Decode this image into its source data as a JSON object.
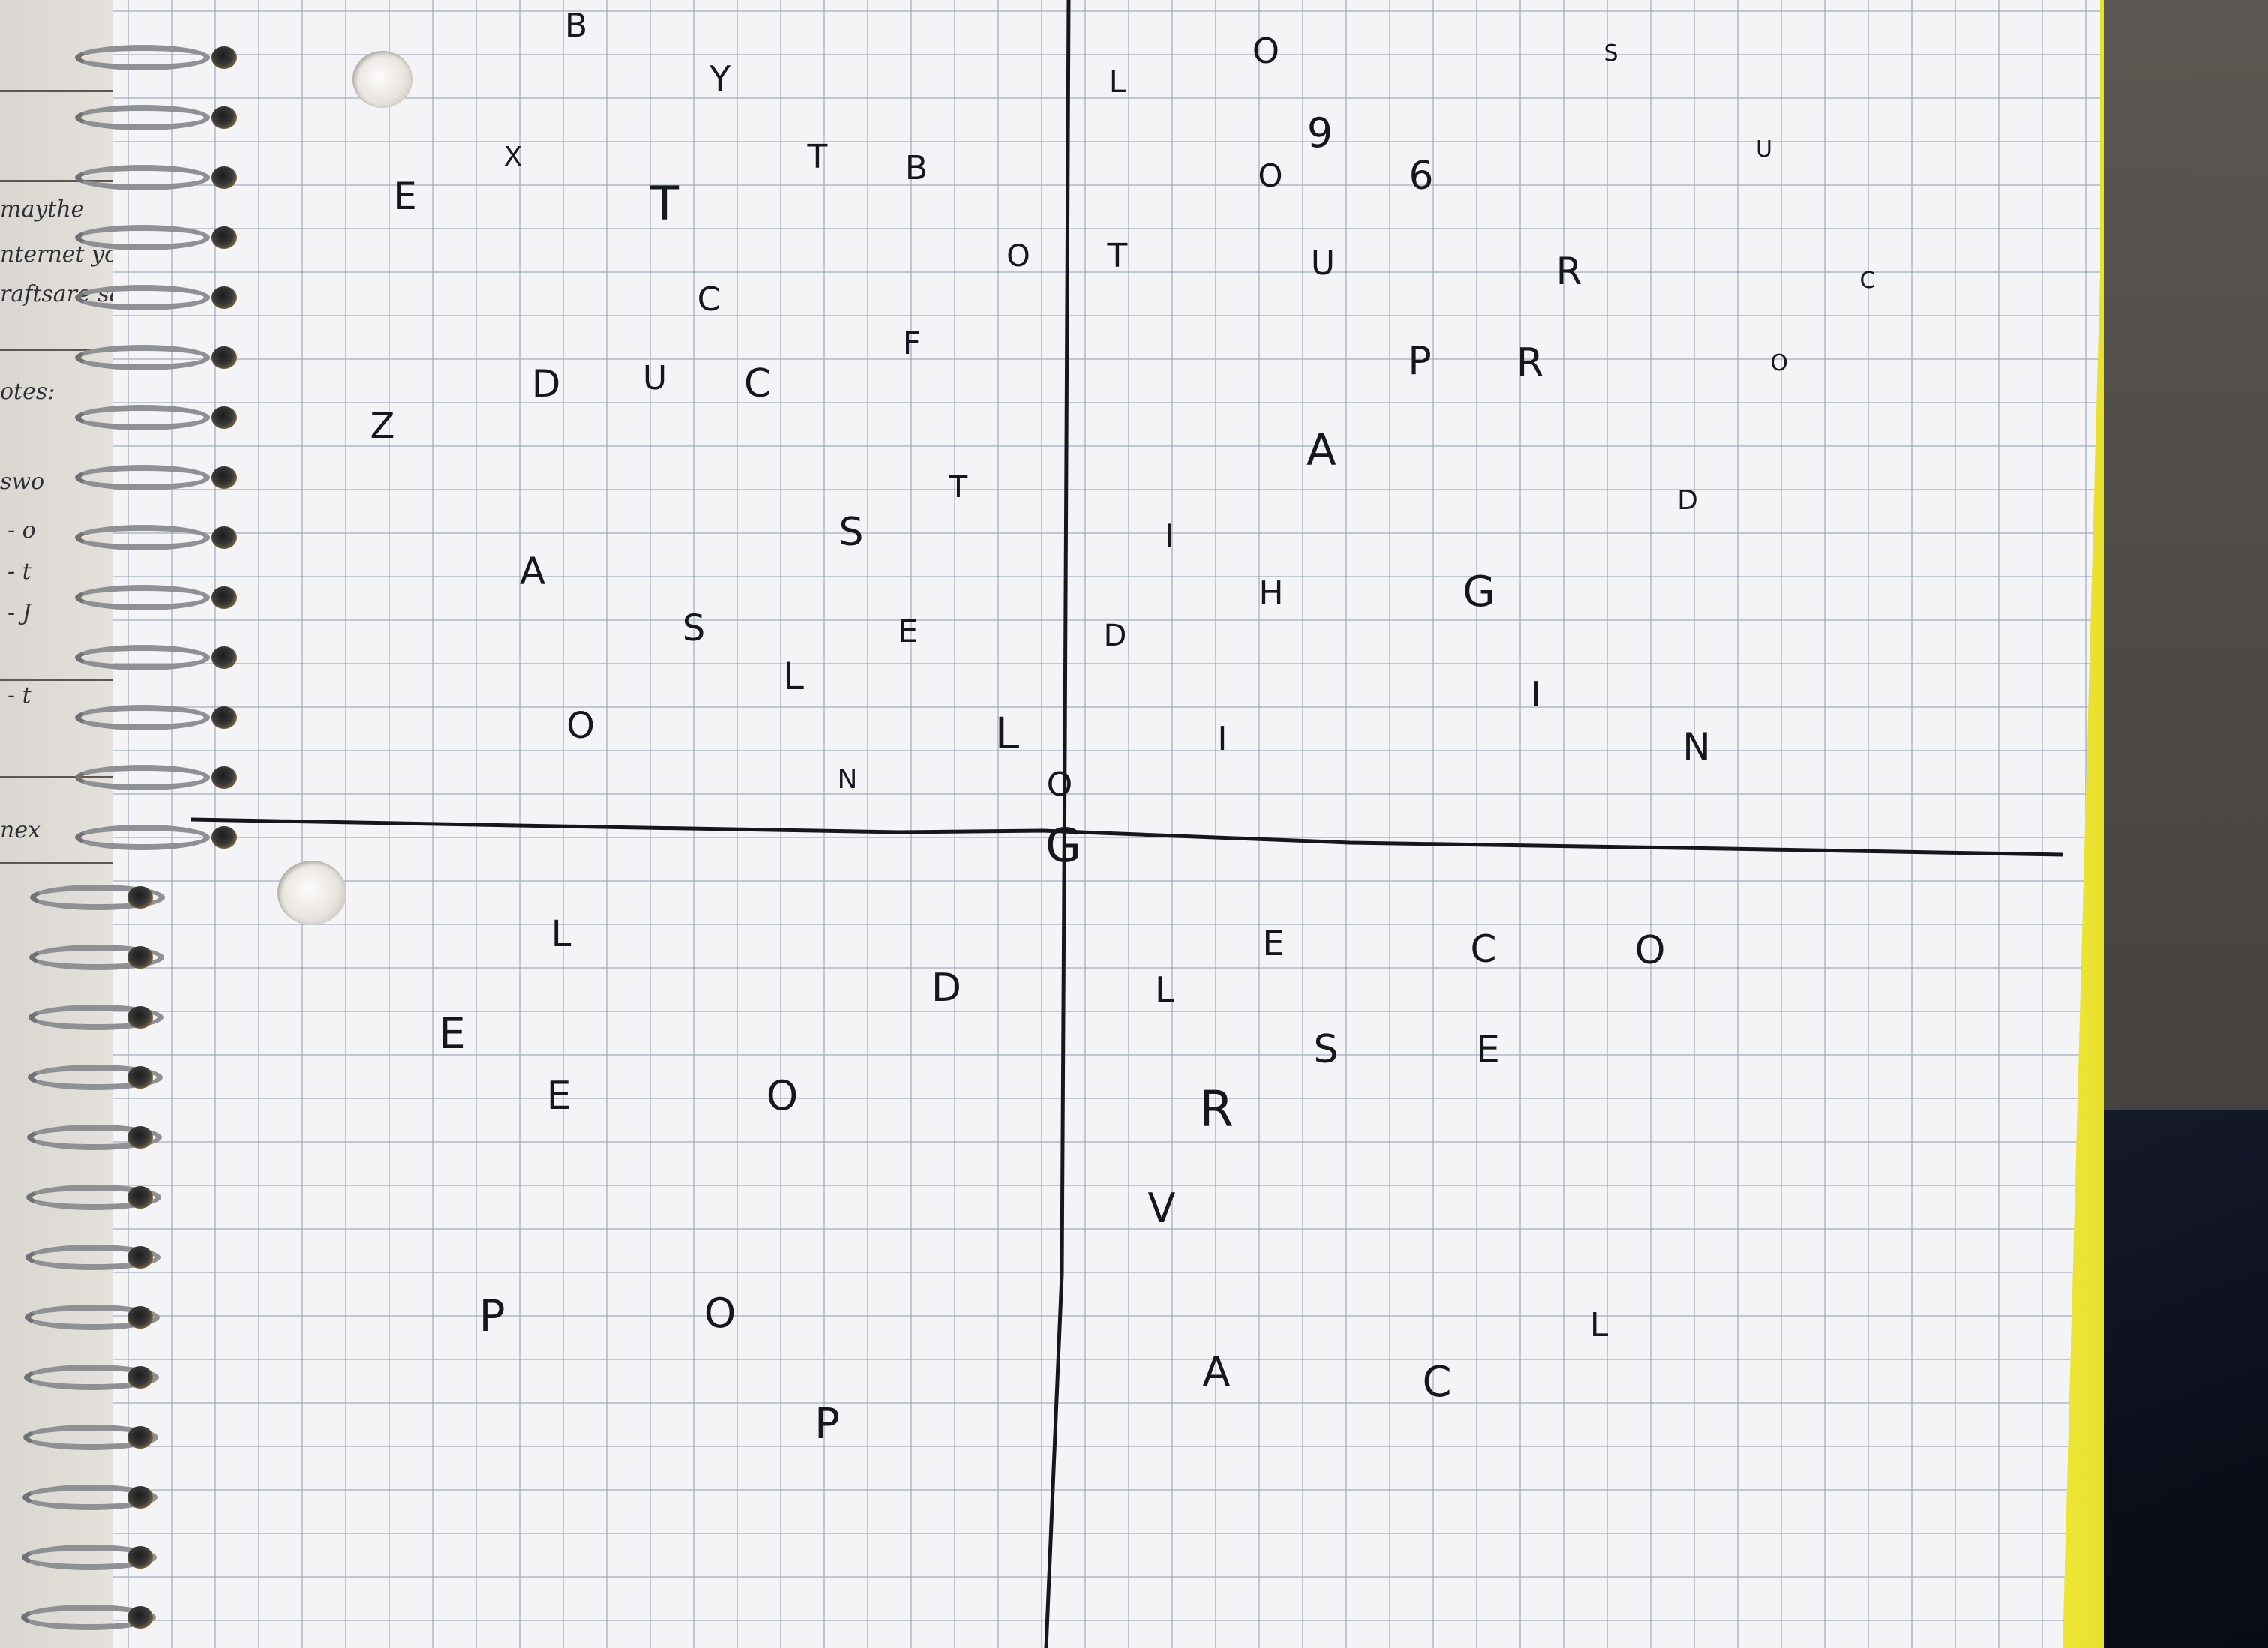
{
  "scene": {
    "description_kind": "photo",
    "colors": {
      "paper": "#f4f4f6",
      "grid": "#96a2b6",
      "ink": "#16171c",
      "notebook_edge": "#f2ec3a",
      "desk": "#4a4744",
      "fabric": "#0c0f1b"
    }
  },
  "notebook_left": {
    "scrawls": [
      "maythe",
      "nternet yo",
      "raftsare sa",
      "otes:",
      "swo",
      "- o",
      "- t",
      "- J",
      "- t",
      "nex"
    ]
  },
  "letters": [
    {
      "t": "B"
    },
    {
      "t": "Y"
    },
    {
      "t": "L"
    },
    {
      "t": "O"
    },
    {
      "t": "S"
    },
    {
      "t": "9"
    },
    {
      "t": "X"
    },
    {
      "t": "T"
    },
    {
      "t": "B"
    },
    {
      "t": "O"
    },
    {
      "t": "6"
    },
    {
      "t": "U"
    },
    {
      "t": "E"
    },
    {
      "t": "T"
    },
    {
      "t": "O"
    },
    {
      "t": "T"
    },
    {
      "t": "U"
    },
    {
      "t": "R"
    },
    {
      "t": "C"
    },
    {
      "t": "C"
    },
    {
      "t": "F"
    },
    {
      "t": "P"
    },
    {
      "t": "R"
    },
    {
      "t": "O"
    },
    {
      "t": "D"
    },
    {
      "t": "U"
    },
    {
      "t": "C"
    },
    {
      "t": "Z"
    },
    {
      "t": "A"
    },
    {
      "t": "T"
    },
    {
      "t": "D"
    },
    {
      "t": "S"
    },
    {
      "t": "I"
    },
    {
      "t": "A"
    },
    {
      "t": "H"
    },
    {
      "t": "G"
    },
    {
      "t": "S"
    },
    {
      "t": "E"
    },
    {
      "t": "D"
    },
    {
      "t": "L"
    },
    {
      "t": "I"
    },
    {
      "t": "O"
    },
    {
      "t": "L"
    },
    {
      "t": "I"
    },
    {
      "t": "N"
    },
    {
      "t": "N"
    },
    {
      "t": "O"
    },
    {
      "t": "G"
    },
    {
      "t": "L"
    },
    {
      "t": "E"
    },
    {
      "t": "C"
    },
    {
      "t": "O"
    },
    {
      "t": "D"
    },
    {
      "t": "L"
    },
    {
      "t": "E"
    },
    {
      "t": "S"
    },
    {
      "t": "E"
    },
    {
      "t": "E"
    },
    {
      "t": "O"
    },
    {
      "t": "R"
    },
    {
      "t": "V"
    },
    {
      "t": "P"
    },
    {
      "t": "O"
    },
    {
      "t": "L"
    },
    {
      "t": "A"
    },
    {
      "t": "C"
    },
    {
      "t": "P"
    }
  ]
}
